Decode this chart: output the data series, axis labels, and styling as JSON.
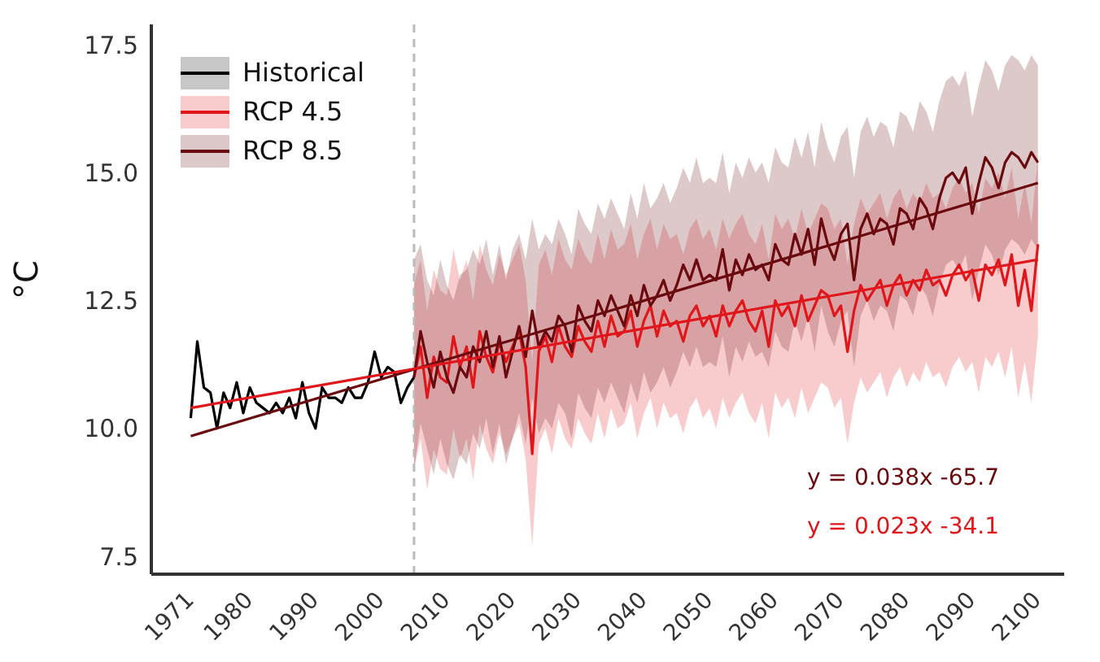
{
  "chart_data": {
    "type": "line",
    "ylabel": "°C",
    "xlim": [
      1965,
      2104
    ],
    "ylim": [
      7.15,
      17.9
    ],
    "xticks": [
      1971,
      1980,
      1990,
      2000,
      2010,
      2020,
      2030,
      2040,
      2050,
      2060,
      2070,
      2080,
      2090,
      2100
    ],
    "yticks": [
      7.5,
      {
        "value": 10,
        "label": "10.0"
      },
      12.5,
      {
        "value": 15,
        "label": "15.0"
      },
      17.5
    ],
    "grid": false,
    "legend": "top left",
    "line_style": "solid",
    "marker": "none",
    "ref_lines": [
      {
        "axis": "x",
        "value": 2005,
        "color": "#bbbbbb",
        "line_style": "dashed"
      }
    ],
    "annotations": [
      "y = 0.038x -65.7",
      "y = 0.023x -34.1"
    ],
    "series": [
      {
        "name": "Historical",
        "color": "#000000",
        "x": [
          1971,
          1972,
          1973,
          1974,
          1975,
          1976,
          1977,
          1978,
          1979,
          1980,
          1981,
          1982,
          1983,
          1984,
          1985,
          1986,
          1987,
          1988,
          1989,
          1990,
          1991,
          1992,
          1993,
          1994,
          1995,
          1996,
          1997,
          1998,
          1999,
          2000,
          2001,
          2002,
          2003,
          2004,
          2005
        ],
        "values": [
          10.2,
          11.7,
          10.8,
          10.7,
          10.0,
          10.7,
          10.4,
          10.9,
          10.3,
          10.8,
          10.5,
          10.4,
          10.3,
          10.5,
          10.3,
          10.6,
          10.2,
          10.9,
          10.3,
          10.0,
          10.8,
          10.6,
          10.6,
          10.5,
          10.8,
          10.6,
          10.6,
          10.9,
          11.5,
          11.0,
          11.2,
          11.1,
          10.5,
          10.8,
          11.0
        ]
      },
      {
        "name": "RCP 4.5",
        "color": "#e0161b",
        "x": [
          2005,
          2006,
          2007,
          2008,
          2009,
          2010,
          2011,
          2012,
          2013,
          2014,
          2015,
          2016,
          2017,
          2018,
          2019,
          2020,
          2021,
          2022,
          2023,
          2024,
          2025,
          2026,
          2027,
          2028,
          2029,
          2030,
          2031,
          2032,
          2033,
          2034,
          2035,
          2036,
          2037,
          2038,
          2039,
          2040,
          2041,
          2042,
          2043,
          2044,
          2045,
          2046,
          2047,
          2048,
          2049,
          2050,
          2051,
          2052,
          2053,
          2054,
          2055,
          2056,
          2057,
          2058,
          2059,
          2060,
          2061,
          2062,
          2063,
          2064,
          2065,
          2066,
          2067,
          2068,
          2069,
          2070,
          2071,
          2072,
          2073,
          2074,
          2075,
          2076,
          2077,
          2078,
          2079,
          2080,
          2081,
          2082,
          2083,
          2084,
          2085,
          2086,
          2087,
          2088,
          2089,
          2090,
          2091,
          2092,
          2093,
          2094,
          2095,
          2096,
          2097,
          2098,
          2099,
          2100
        ],
        "values": [
          11.0,
          11.6,
          10.6,
          11.4,
          11.0,
          10.9,
          11.8,
          11.2,
          11.6,
          10.8,
          11.9,
          11.4,
          11.1,
          11.7,
          11.3,
          11.6,
          11.9,
          11.2,
          9.5,
          11.5,
          11.8,
          11.3,
          12.0,
          11.6,
          11.4,
          12.0,
          11.7,
          11.5,
          12.1,
          11.6,
          12.2,
          11.8,
          11.9,
          12.3,
          11.6,
          12.1,
          12.4,
          11.8,
          12.3,
          12.0,
          12.1,
          11.7,
          12.2,
          12.4,
          12.0,
          12.2,
          11.8,
          12.4,
          12.0,
          12.3,
          12.5,
          12.1,
          11.9,
          12.3,
          11.6,
          12.5,
          12.2,
          12.4,
          12.0,
          12.6,
          12.1,
          12.4,
          12.7,
          12.6,
          12.2,
          12.4,
          11.5,
          12.3,
          12.8,
          12.5,
          12.7,
          12.9,
          12.4,
          12.8,
          13.0,
          12.6,
          12.9,
          12.7,
          13.1,
          12.8,
          12.9,
          12.6,
          13.0,
          13.2,
          12.9,
          13.1,
          12.5,
          13.2,
          13.0,
          13.3,
          12.8,
          13.4,
          12.4,
          13.1,
          12.3,
          13.6
        ],
        "upper": [
          12.8,
          13.3,
          12.3,
          13.1,
          12.7,
          12.6,
          13.5,
          12.9,
          13.3,
          12.5,
          13.6,
          13.1,
          12.8,
          13.4,
          13.0,
          13.3,
          13.6,
          12.9,
          11.3,
          13.2,
          13.5,
          13.0,
          13.7,
          13.3,
          13.1,
          13.7,
          13.4,
          13.2,
          13.8,
          13.3,
          13.9,
          13.5,
          13.6,
          14.0,
          13.3,
          13.8,
          14.1,
          13.5,
          14.0,
          13.7,
          13.8,
          13.4,
          13.9,
          14.1,
          13.7,
          13.9,
          13.5,
          14.1,
          13.7,
          14.0,
          14.2,
          13.8,
          13.6,
          14.0,
          13.3,
          14.2,
          13.9,
          14.1,
          13.7,
          14.3,
          13.8,
          14.1,
          14.4,
          14.3,
          13.9,
          14.1,
          13.2,
          14.0,
          14.5,
          14.2,
          14.4,
          14.6,
          14.1,
          14.5,
          14.7,
          14.3,
          14.6,
          14.4,
          14.8,
          14.5,
          14.6,
          14.3,
          14.7,
          14.9,
          14.6,
          14.8,
          14.2,
          14.9,
          14.7,
          15.0,
          14.5,
          15.1,
          14.1,
          14.8,
          14.0,
          15.3
        ],
        "lower": [
          9.2,
          9.8,
          8.8,
          9.6,
          9.2,
          9.1,
          10.0,
          9.4,
          9.8,
          9.0,
          10.1,
          9.6,
          9.3,
          9.9,
          9.5,
          9.8,
          10.1,
          9.4,
          7.7,
          9.7,
          10.0,
          9.5,
          10.2,
          9.8,
          9.6,
          10.2,
          9.9,
          9.7,
          10.3,
          9.8,
          10.4,
          10.0,
          10.1,
          10.5,
          9.8,
          10.3,
          10.6,
          10.0,
          10.5,
          10.2,
          10.3,
          9.9,
          10.4,
          10.6,
          10.2,
          10.4,
          10.0,
          10.6,
          10.2,
          10.5,
          10.7,
          10.3,
          10.1,
          10.5,
          9.8,
          10.7,
          10.4,
          10.6,
          10.2,
          10.8,
          10.3,
          10.6,
          10.9,
          10.8,
          10.4,
          10.6,
          9.7,
          10.5,
          11.0,
          10.7,
          10.9,
          11.1,
          10.6,
          11.0,
          11.2,
          10.8,
          11.1,
          10.9,
          11.3,
          11.0,
          11.1,
          10.8,
          11.2,
          11.4,
          11.1,
          11.3,
          10.7,
          11.4,
          11.2,
          11.5,
          11.0,
          11.6,
          10.6,
          11.3,
          10.5,
          11.8
        ]
      },
      {
        "name": "RCP 8.5",
        "color": "#6b0a0e",
        "x": [
          2005,
          2006,
          2007,
          2008,
          2009,
          2010,
          2011,
          2012,
          2013,
          2014,
          2015,
          2016,
          2017,
          2018,
          2019,
          2020,
          2021,
          2022,
          2023,
          2024,
          2025,
          2026,
          2027,
          2028,
          2029,
          2030,
          2031,
          2032,
          2033,
          2034,
          2035,
          2036,
          2037,
          2038,
          2039,
          2040,
          2041,
          2042,
          2043,
          2044,
          2045,
          2046,
          2047,
          2048,
          2049,
          2050,
          2051,
          2052,
          2053,
          2054,
          2055,
          2056,
          2057,
          2058,
          2059,
          2060,
          2061,
          2062,
          2063,
          2064,
          2065,
          2066,
          2067,
          2068,
          2069,
          2070,
          2071,
          2072,
          2073,
          2074,
          2075,
          2076,
          2077,
          2078,
          2079,
          2080,
          2081,
          2082,
          2083,
          2084,
          2085,
          2086,
          2087,
          2088,
          2089,
          2090,
          2091,
          2092,
          2093,
          2094,
          2095,
          2096,
          2097,
          2098,
          2099,
          2100
        ],
        "values": [
          11.0,
          11.9,
          11.3,
          10.8,
          11.5,
          11.0,
          10.7,
          11.2,
          11.0,
          11.6,
          11.3,
          11.9,
          11.2,
          11.8,
          11.0,
          11.5,
          12.0,
          11.4,
          12.3,
          11.6,
          11.9,
          11.7,
          12.2,
          12.0,
          11.5,
          12.4,
          12.1,
          11.9,
          12.5,
          12.2,
          12.6,
          12.3,
          12.0,
          12.6,
          12.2,
          12.8,
          12.4,
          12.6,
          12.9,
          12.5,
          12.8,
          13.2,
          12.9,
          13.3,
          12.9,
          13.0,
          12.9,
          13.5,
          12.7,
          13.3,
          13.0,
          13.4,
          13.1,
          13.2,
          12.9,
          13.6,
          13.3,
          13.2,
          13.8,
          13.4,
          13.9,
          13.2,
          14.1,
          13.6,
          13.3,
          13.8,
          14.0,
          12.9,
          13.9,
          14.2,
          13.8,
          14.1,
          14.0,
          13.6,
          14.3,
          14.2,
          13.9,
          14.5,
          14.3,
          13.9,
          14.5,
          14.9,
          15.0,
          14.8,
          15.1,
          14.2,
          14.8,
          15.3,
          15.1,
          14.7,
          15.2,
          15.4,
          15.3,
          15.1,
          15.4,
          15.2
        ],
        "upper": [
          13.3,
          13.6,
          12.9,
          12.6,
          13.3,
          12.8,
          12.5,
          13.0,
          13.1,
          13.5,
          13.2,
          13.7,
          13.0,
          13.6,
          12.9,
          13.5,
          13.8,
          13.3,
          14.1,
          13.5,
          13.8,
          13.6,
          14.1,
          13.8,
          13.4,
          14.3,
          14.0,
          13.8,
          14.4,
          14.1,
          14.5,
          14.2,
          13.9,
          14.6,
          14.1,
          14.8,
          14.3,
          14.5,
          14.8,
          14.4,
          14.7,
          15.1,
          14.8,
          15.3,
          14.8,
          14.9,
          14.8,
          15.4,
          14.6,
          15.2,
          14.9,
          15.3,
          15.0,
          15.2,
          14.8,
          15.5,
          15.2,
          15.1,
          15.7,
          15.3,
          15.8,
          15.1,
          16.0,
          15.5,
          15.2,
          15.7,
          15.9,
          14.9,
          15.8,
          16.1,
          15.7,
          16.0,
          15.9,
          15.5,
          16.2,
          16.1,
          15.8,
          16.4,
          16.2,
          15.8,
          16.4,
          16.8,
          16.9,
          16.7,
          17.0,
          16.1,
          16.7,
          17.2,
          17.0,
          16.6,
          17.1,
          17.3,
          17.2,
          17.0,
          17.3,
          17.1
        ],
        "lower": [
          9.2,
          10.1,
          9.6,
          9.1,
          9.8,
          9.3,
          9.0,
          9.5,
          9.3,
          9.9,
          9.6,
          10.2,
          9.5,
          10.1,
          9.3,
          9.8,
          10.3,
          9.7,
          10.6,
          9.9,
          10.2,
          10.0,
          10.5,
          10.3,
          9.8,
          10.7,
          10.4,
          10.2,
          10.8,
          10.5,
          10.9,
          10.6,
          10.3,
          10.9,
          10.5,
          11.1,
          10.7,
          10.9,
          11.2,
          10.8,
          11.1,
          11.5,
          11.2,
          11.6,
          11.2,
          11.3,
          11.2,
          11.8,
          11.0,
          11.6,
          11.3,
          11.7,
          11.4,
          11.5,
          11.2,
          11.9,
          11.6,
          11.5,
          12.1,
          11.7,
          12.2,
          11.5,
          12.4,
          11.9,
          11.6,
          12.1,
          12.3,
          11.2,
          12.2,
          12.5,
          12.1,
          12.4,
          12.3,
          11.9,
          12.6,
          12.5,
          12.2,
          12.8,
          12.6,
          12.2,
          12.8,
          13.2,
          13.3,
          13.1,
          13.4,
          12.5,
          13.1,
          13.6,
          13.4,
          13.0,
          13.5,
          13.7,
          13.6,
          13.4,
          13.7,
          13.5
        ]
      },
      {
        "color": "#6b0a0e",
        "x": [
          1971,
          2100
        ],
        "values": [
          9.85,
          14.8
        ]
      },
      {
        "color": "#e0161b",
        "x": [
          1971,
          2100
        ],
        "values": [
          10.4,
          13.3
        ]
      }
    ]
  }
}
